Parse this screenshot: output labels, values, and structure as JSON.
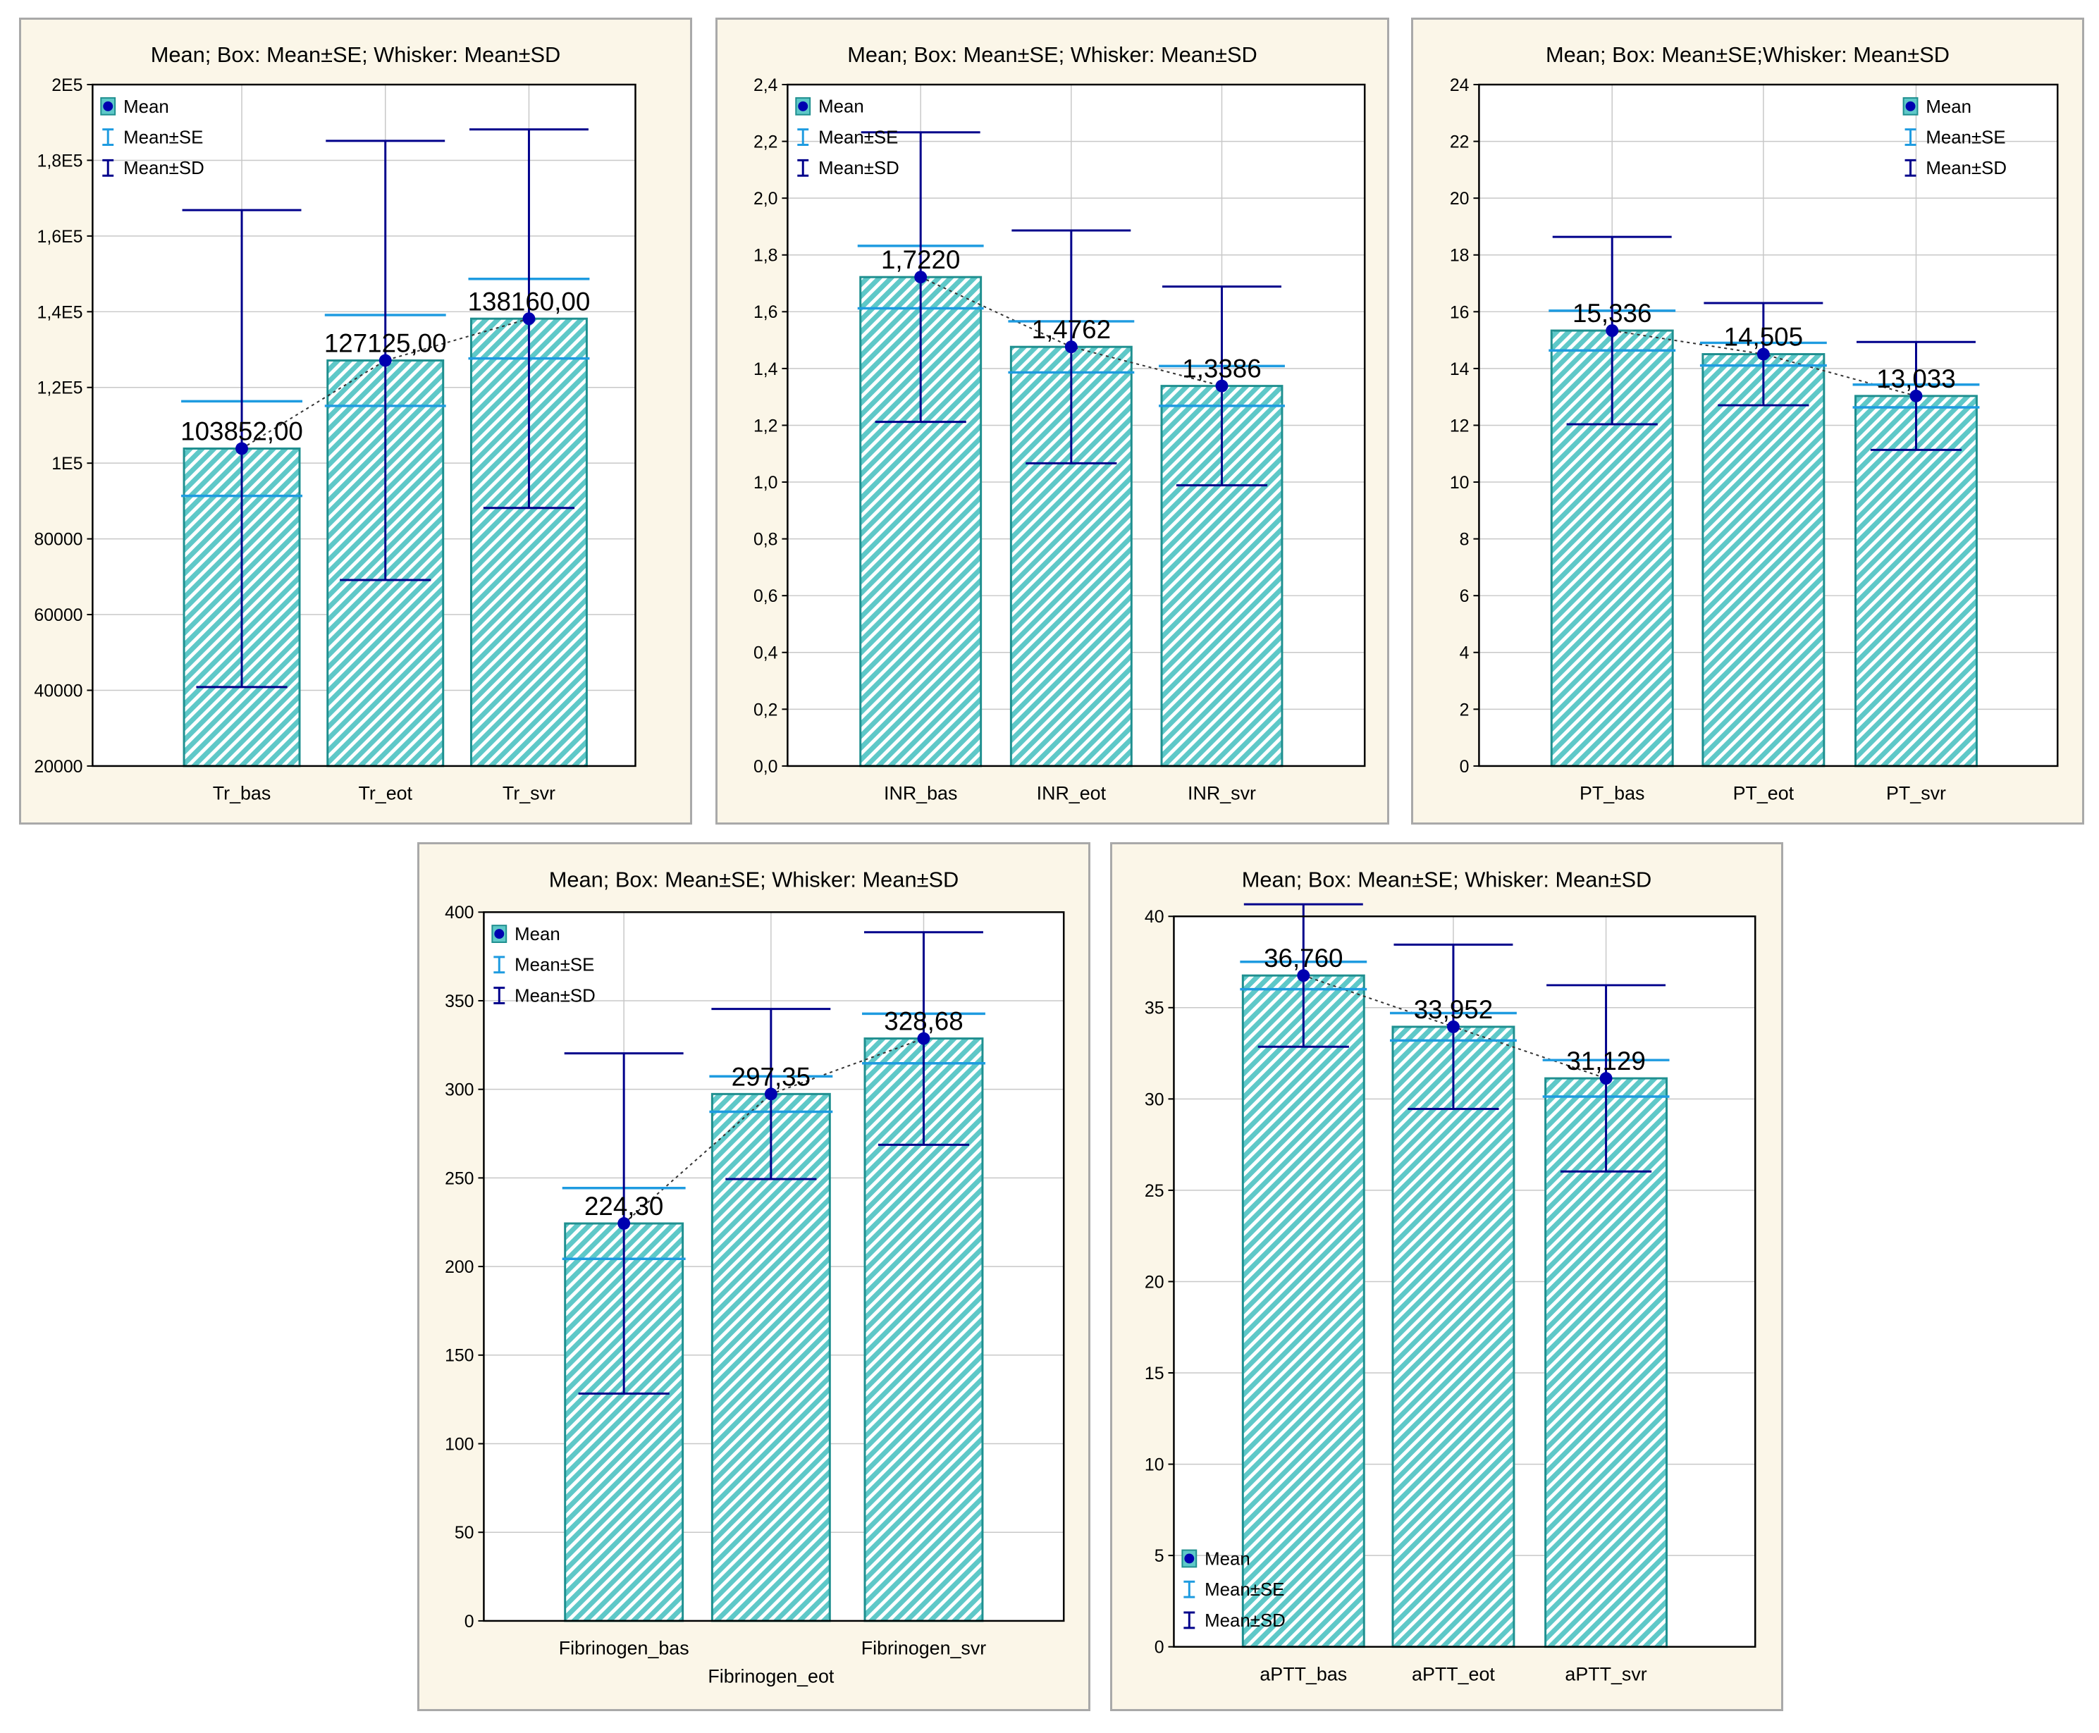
{
  "colors": {
    "panel_bg": "#fbf6e8",
    "bar_fill": "#5ec8c8",
    "bar_edge": "#1f8f8f",
    "se_line": "#1e9be0",
    "sd_line": "#00008b",
    "mean_marker": "#0000b0",
    "grid": "#c8c8c8"
  },
  "legend_labels": {
    "mean": "Mean",
    "se": "Mean±SE",
    "sd": "Mean±SD"
  },
  "chart_data": [
    {
      "type": "bar",
      "title": "Mean; Box: Mean±SE; Whisker: Mean±SD",
      "categories": [
        "Tr_bas",
        "Tr_eot",
        "Tr_svr"
      ],
      "means": [
        103852,
        127125,
        138160
      ],
      "se": [
        12500,
        12000,
        10500
      ],
      "sd": [
        63000,
        58000,
        50000
      ],
      "value_labels": [
        "103852,00",
        "127125,00",
        "138160,00"
      ],
      "ylim": [
        20000,
        200000
      ],
      "yticks": [
        20000,
        40000,
        60000,
        80000,
        100000,
        120000,
        140000,
        160000,
        180000,
        200000
      ],
      "ytick_labels": [
        "20000",
        "40000",
        "60000",
        "80000",
        "1E5",
        "1,2E5",
        "1,4E5",
        "1,6E5",
        "1,8E5",
        "2E5"
      ],
      "legend_position": "top-left",
      "grid": true
    },
    {
      "type": "bar",
      "title": "Mean; Box: Mean±SE; Whisker: Mean±SD",
      "categories": [
        "INR_bas",
        "INR_eot",
        "INR_svr"
      ],
      "means": [
        1.722,
        1.4762,
        1.3386
      ],
      "se": [
        0.11,
        0.09,
        0.07
      ],
      "sd": [
        0.51,
        0.41,
        0.35
      ],
      "value_labels": [
        "1,7220",
        "1,4762",
        "1,3386"
      ],
      "ylim": [
        0,
        2.4
      ],
      "yticks": [
        0,
        0.2,
        0.4,
        0.6,
        0.8,
        1.0,
        1.2,
        1.4,
        1.6,
        1.8,
        2.0,
        2.2,
        2.4
      ],
      "ytick_labels": [
        "0,0",
        "0,2",
        "0,4",
        "0,6",
        "0,8",
        "1,0",
        "1,2",
        "1,4",
        "1,6",
        "1,8",
        "2,0",
        "2,2",
        "2,4"
      ],
      "legend_position": "top-left",
      "grid": true
    },
    {
      "type": "bar",
      "title": "Mean; Box: Mean±SE;Whisker: Mean±SD",
      "categories": [
        "PT_bas",
        "PT_eot",
        "PT_svr"
      ],
      "means": [
        15.336,
        14.505,
        13.033
      ],
      "se": [
        0.7,
        0.4,
        0.4
      ],
      "sd": [
        3.3,
        1.8,
        1.9
      ],
      "value_labels": [
        "15,336",
        "14,505",
        "13,033"
      ],
      "ylim": [
        0,
        24
      ],
      "yticks": [
        0,
        2,
        4,
        6,
        8,
        10,
        12,
        14,
        16,
        18,
        20,
        22,
        24
      ],
      "ytick_labels": [
        "0",
        "2",
        "4",
        "6",
        "8",
        "10",
        "12",
        "14",
        "16",
        "18",
        "20",
        "22",
        "24"
      ],
      "legend_position": "top-right",
      "grid": true
    },
    {
      "type": "bar",
      "title": "Mean; Box: Mean±SE; Whisker: Mean±SD",
      "categories": [
        "Fibrinogen_bas",
        "Fibrinogen_eot",
        "Fibrinogen_svr"
      ],
      "means": [
        224.3,
        297.35,
        328.68
      ],
      "se": [
        20,
        10,
        14
      ],
      "sd": [
        96,
        48,
        60
      ],
      "value_labels": [
        "224,30",
        "297,35",
        "328,68"
      ],
      "ylim": [
        0,
        400
      ],
      "yticks": [
        0,
        50,
        100,
        150,
        200,
        250,
        300,
        350,
        400
      ],
      "ytick_labels": [
        "0",
        "50",
        "100",
        "150",
        "200",
        "250",
        "300",
        "350",
        "400"
      ],
      "legend_position": "top-left",
      "grid": true
    },
    {
      "type": "bar",
      "title": "Mean; Box: Mean±SE; Whisker: Mean±SD",
      "categories": [
        "aPTT_bas",
        "aPTT_eot",
        "aPTT_svr"
      ],
      "means": [
        36.76,
        33.952,
        31.129
      ],
      "se": [
        0.75,
        0.75,
        1.0
      ],
      "sd": [
        3.9,
        4.5,
        5.1
      ],
      "value_labels": [
        "36,760",
        "33,952",
        "31,129"
      ],
      "ylim": [
        0,
        40
      ],
      "yticks": [
        0,
        5,
        10,
        15,
        20,
        25,
        30,
        35,
        40
      ],
      "ytick_labels": [
        "0",
        "5",
        "10",
        "15",
        "20",
        "25",
        "30",
        "35",
        "40"
      ],
      "legend_position": "bottom-left",
      "grid": true
    }
  ]
}
